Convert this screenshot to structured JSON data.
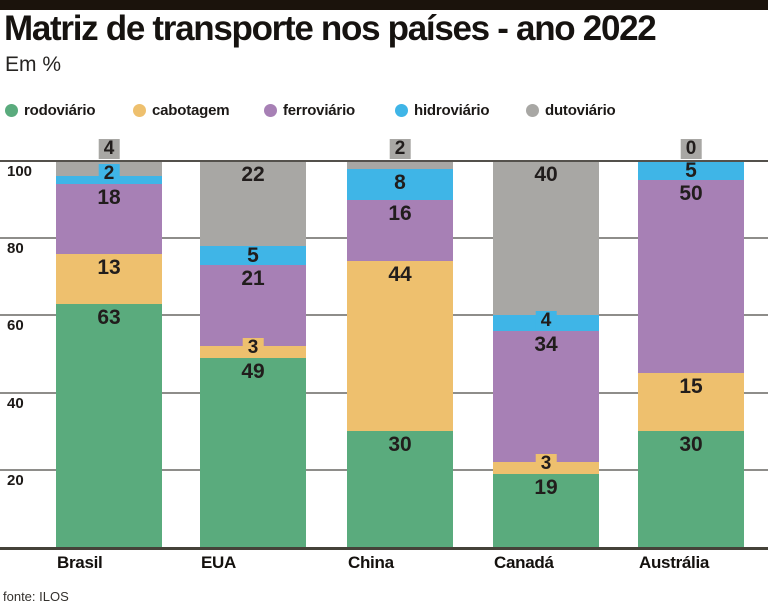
{
  "header": {
    "title": "Matriz de transporte nos países - ano 2022",
    "subtitle": "Em %",
    "topbar_color": "#1b130c"
  },
  "footer": {
    "source": "fonte: ILOS"
  },
  "colors": {
    "rodoviario": "#5aab7d",
    "cabotagem": "#eec06e",
    "ferroviario": "#a780b5",
    "hidroviario": "#3fb5e7",
    "dutoviario": "#a8a7a4",
    "gridline": "#8e8d8a",
    "gridline_top": "#54514c",
    "baseline": "#454239",
    "text": "#1c1917"
  },
  "chart_data": {
    "type": "bar",
    "stacked": true,
    "title": "Matriz de transporte nos países - ano 2022",
    "unit": "Em %",
    "categories": [
      "Brasil",
      "EUA",
      "China",
      "Canadá",
      "Austrália"
    ],
    "series": [
      {
        "name": "rodoviário",
        "color": "#5aab7d",
        "values": [
          63,
          49,
          30,
          19,
          30
        ]
      },
      {
        "name": "cabotagem",
        "color": "#eec06e",
        "values": [
          13,
          3,
          44,
          3,
          15
        ]
      },
      {
        "name": "ferroviário",
        "color": "#a780b5",
        "values": [
          18,
          21,
          16,
          34,
          50
        ]
      },
      {
        "name": "hidroviário",
        "color": "#3fb5e7",
        "values": [
          2,
          5,
          8,
          4,
          5
        ]
      },
      {
        "name": "dutoviário",
        "color": "#a8a7a4",
        "values": [
          4,
          22,
          2,
          40,
          0
        ]
      }
    ],
    "ylim": [
      0,
      100
    ],
    "yticks": [
      20,
      40,
      60,
      80,
      100
    ],
    "grid": "horizontal",
    "legend_position": "top",
    "source": "fonte: ILOS"
  }
}
